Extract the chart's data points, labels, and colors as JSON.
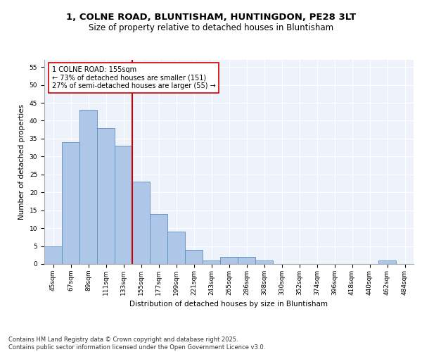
{
  "title_line1": "1, COLNE ROAD, BLUNTISHAM, HUNTINGDON, PE28 3LT",
  "title_line2": "Size of property relative to detached houses in Bluntisham",
  "xlabel": "Distribution of detached houses by size in Bluntisham",
  "ylabel": "Number of detached properties",
  "categories": [
    "45sqm",
    "67sqm",
    "89sqm",
    "111sqm",
    "133sqm",
    "155sqm",
    "177sqm",
    "199sqm",
    "221sqm",
    "243sqm",
    "265sqm",
    "286sqm",
    "308sqm",
    "330sqm",
    "352sqm",
    "374sqm",
    "396sqm",
    "418sqm",
    "440sqm",
    "462sqm",
    "484sqm"
  ],
  "values": [
    5,
    34,
    43,
    38,
    33,
    23,
    14,
    9,
    4,
    1,
    2,
    2,
    1,
    0,
    0,
    0,
    0,
    0,
    0,
    1,
    0
  ],
  "bar_color": "#aec6e8",
  "bar_edge_color": "#5a8fc0",
  "vline_color": "#cc0000",
  "annotation_text": "1 COLNE ROAD: 155sqm\n← 73% of detached houses are smaller (151)\n27% of semi-detached houses are larger (55) →",
  "annotation_box_color": "#ffffff",
  "annotation_box_edge": "#cc0000",
  "ylim": [
    0,
    57
  ],
  "yticks": [
    0,
    5,
    10,
    15,
    20,
    25,
    30,
    35,
    40,
    45,
    50,
    55
  ],
  "background_color": "#eef2fb",
  "grid_color": "#ffffff",
  "footer": "Contains HM Land Registry data © Crown copyright and database right 2025.\nContains public sector information licensed under the Open Government Licence v3.0.",
  "title_fontsize": 9.5,
  "subtitle_fontsize": 8.5,
  "axis_label_fontsize": 7.5,
  "tick_fontsize": 6.5,
  "annotation_fontsize": 7.0,
  "footer_fontsize": 6.0
}
